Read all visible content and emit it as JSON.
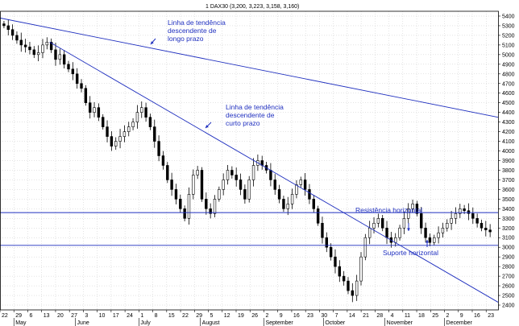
{
  "chart_data": {
    "type": "candlestick",
    "title": "1 DAX30 (3,200, 3,223, 3,158, 3,160)",
    "ylim": [
      2350,
      5450
    ],
    "yticks": [
      2400,
      2500,
      2600,
      2700,
      2800,
      2900,
      3000,
      3100,
      3200,
      3300,
      3400,
      3500,
      3600,
      3700,
      3800,
      3900,
      4000,
      4100,
      4200,
      4300,
      4400,
      4500,
      4600,
      4700,
      4800,
      4900,
      5000,
      5100,
      5200,
      5300,
      5400
    ],
    "x_day_ticks": [
      {
        "day": 0,
        "label": "22"
      },
      {
        "day": 7,
        "label": "29"
      },
      {
        "day": 14,
        "label": "6"
      },
      {
        "day": 21,
        "label": "13"
      },
      {
        "day": 28,
        "label": "20"
      },
      {
        "day": 35,
        "label": "27"
      },
      {
        "day": 42,
        "label": "3"
      },
      {
        "day": 49,
        "label": "10"
      },
      {
        "day": 56,
        "label": "17"
      },
      {
        "day": 63,
        "label": "24"
      },
      {
        "day": 70,
        "label": "1"
      },
      {
        "day": 77,
        "label": "8"
      },
      {
        "day": 84,
        "label": "15"
      },
      {
        "day": 91,
        "label": "22"
      },
      {
        "day": 98,
        "label": "29"
      },
      {
        "day": 105,
        "label": "5"
      },
      {
        "day": 112,
        "label": "12"
      },
      {
        "day": 119,
        "label": "19"
      },
      {
        "day": 126,
        "label": "26"
      },
      {
        "day": 133,
        "label": "2"
      },
      {
        "day": 140,
        "label": "9"
      },
      {
        "day": 147,
        "label": "16"
      },
      {
        "day": 154,
        "label": "23"
      },
      {
        "day": 161,
        "label": "30"
      },
      {
        "day": 168,
        "label": "7"
      },
      {
        "day": 175,
        "label": "14"
      },
      {
        "day": 182,
        "label": "21"
      },
      {
        "day": 189,
        "label": "28"
      },
      {
        "day": 196,
        "label": "4"
      },
      {
        "day": 203,
        "label": "11"
      },
      {
        "day": 210,
        "label": "18"
      },
      {
        "day": 217,
        "label": "25"
      },
      {
        "day": 224,
        "label": "2"
      },
      {
        "day": 231,
        "label": "9"
      },
      {
        "day": 238,
        "label": "16"
      },
      {
        "day": 245,
        "label": "23"
      }
    ],
    "months": [
      {
        "day": 7,
        "label": "May"
      },
      {
        "day": 38,
        "label": "June"
      },
      {
        "day": 70,
        "label": "July"
      },
      {
        "day": 101,
        "label": "August"
      },
      {
        "day": 133,
        "label": "September"
      },
      {
        "day": 163,
        "label": "October"
      },
      {
        "day": 194,
        "label": "November"
      },
      {
        "day": 224,
        "label": "December"
      }
    ],
    "x_range_days": [
      0,
      251
    ],
    "close_series": [
      5300,
      5260,
      5200,
      5150,
      5100,
      5080,
      5050,
      5000,
      5020,
      5100,
      5130,
      5050,
      4950,
      5000,
      4900,
      4850,
      4800,
      4700,
      4650,
      4500,
      4400,
      4450,
      4350,
      4250,
      4150,
      4050,
      4100,
      4150,
      4200,
      4250,
      4300,
      4400,
      4450,
      4350,
      4250,
      4100,
      3950,
      3850,
      3700,
      3600,
      3500,
      3400,
      3300,
      3550,
      3750,
      3800,
      3500,
      3400,
      3350,
      3500,
      3600,
      3700,
      3800,
      3750,
      3700,
      3600,
      3500,
      3700,
      3850,
      3900,
      3850,
      3800,
      3700,
      3600,
      3500,
      3400,
      3450,
      3550,
      3650,
      3700,
      3600,
      3500,
      3400,
      3250,
      3100,
      3000,
      2900,
      2800,
      2700,
      2650,
      2550,
      2500,
      2650,
      2900,
      3100,
      3200,
      3250,
      3300,
      3200,
      3100,
      3050,
      3100,
      3200,
      3300,
      3400,
      3450,
      3350,
      3200,
      3100,
      3050,
      3100,
      3150,
      3200,
      3250,
      3300,
      3350,
      3400,
      3380,
      3350,
      3300,
      3250,
      3200,
      3180,
      3160
    ],
    "annotations": [
      {
        "text": [
          "Linha de tendência",
          "descendente de",
          "longo prazo"
        ]
      },
      {
        "text": [
          "Linha de tendência",
          "descendente de",
          "curto prazo"
        ]
      },
      {
        "text": [
          "Resistência horizontal"
        ]
      },
      {
        "text": [
          "Suporte horizontal"
        ]
      }
    ],
    "trendlines": {
      "long_term": {
        "from": [
          0,
          5380
        ],
        "to": [
          251,
          4350
        ]
      },
      "short_term": {
        "from": [
          25,
          5130
        ],
        "to": [
          251,
          2430
        ]
      }
    },
    "horizontal_lines": [
      {
        "name": "Resistência horizontal",
        "y": 3360
      },
      {
        "name": "Suporte horizontal",
        "y": 3020
      }
    ],
    "colors": {
      "candle": "#000000",
      "candle_up": "#ffffff",
      "lines": "#1f2fbf",
      "grid": "#c8c8c8",
      "text": "#000000"
    },
    "grid": true
  }
}
